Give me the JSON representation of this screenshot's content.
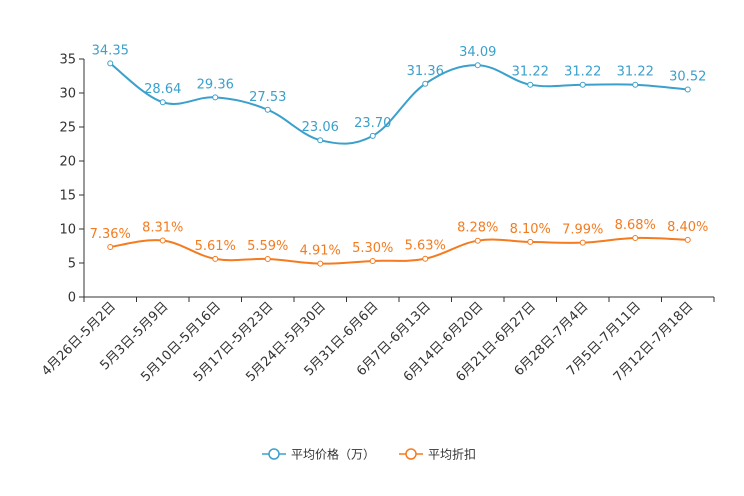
{
  "chart_data": {
    "type": "line",
    "title": "",
    "xlabel": "",
    "ylabel": "",
    "ylim": [
      0,
      35
    ],
    "yticks": [
      0,
      5,
      10,
      15,
      20,
      25,
      30,
      35
    ],
    "grid": false,
    "legend_position": "bottom",
    "categories": [
      "4月26日-5月2日",
      "5月3日-5月9日",
      "5月10日-5月16日",
      "5月17日-5月23日",
      "5月24日-5月30日",
      "5月31日-6月6日",
      "6月7日-6月13日",
      "6月14日-6月20日",
      "6月21日-6月27日",
      "6月28日-7月4日",
      "7月5日-7月11日",
      "7月12日-7月18日"
    ],
    "series": [
      {
        "name": "平均价格（万）",
        "color": "#3ba0cc",
        "values": [
          34.35,
          28.64,
          29.36,
          27.53,
          23.06,
          23.7,
          31.36,
          34.09,
          31.22,
          31.22,
          31.22,
          30.52
        ],
        "labels": [
          "34.35",
          "28.64",
          "29.36",
          "27.53",
          "23.06",
          "23.70",
          "31.36",
          "34.09",
          "31.22",
          "31.22",
          "31.22",
          "30.52"
        ]
      },
      {
        "name": "平均折扣",
        "color": "#f47b20",
        "values": [
          7.36,
          8.31,
          5.61,
          5.59,
          4.91,
          5.3,
          5.63,
          8.28,
          8.1,
          7.99,
          8.68,
          8.4
        ],
        "labels": [
          "7.36%",
          "8.31%",
          "5.61%",
          "5.59%",
          "4.91%",
          "5.30%",
          "5.63%",
          "8.28%",
          "8.10%",
          "7.99%",
          "8.68%",
          "8.40%"
        ]
      }
    ]
  }
}
